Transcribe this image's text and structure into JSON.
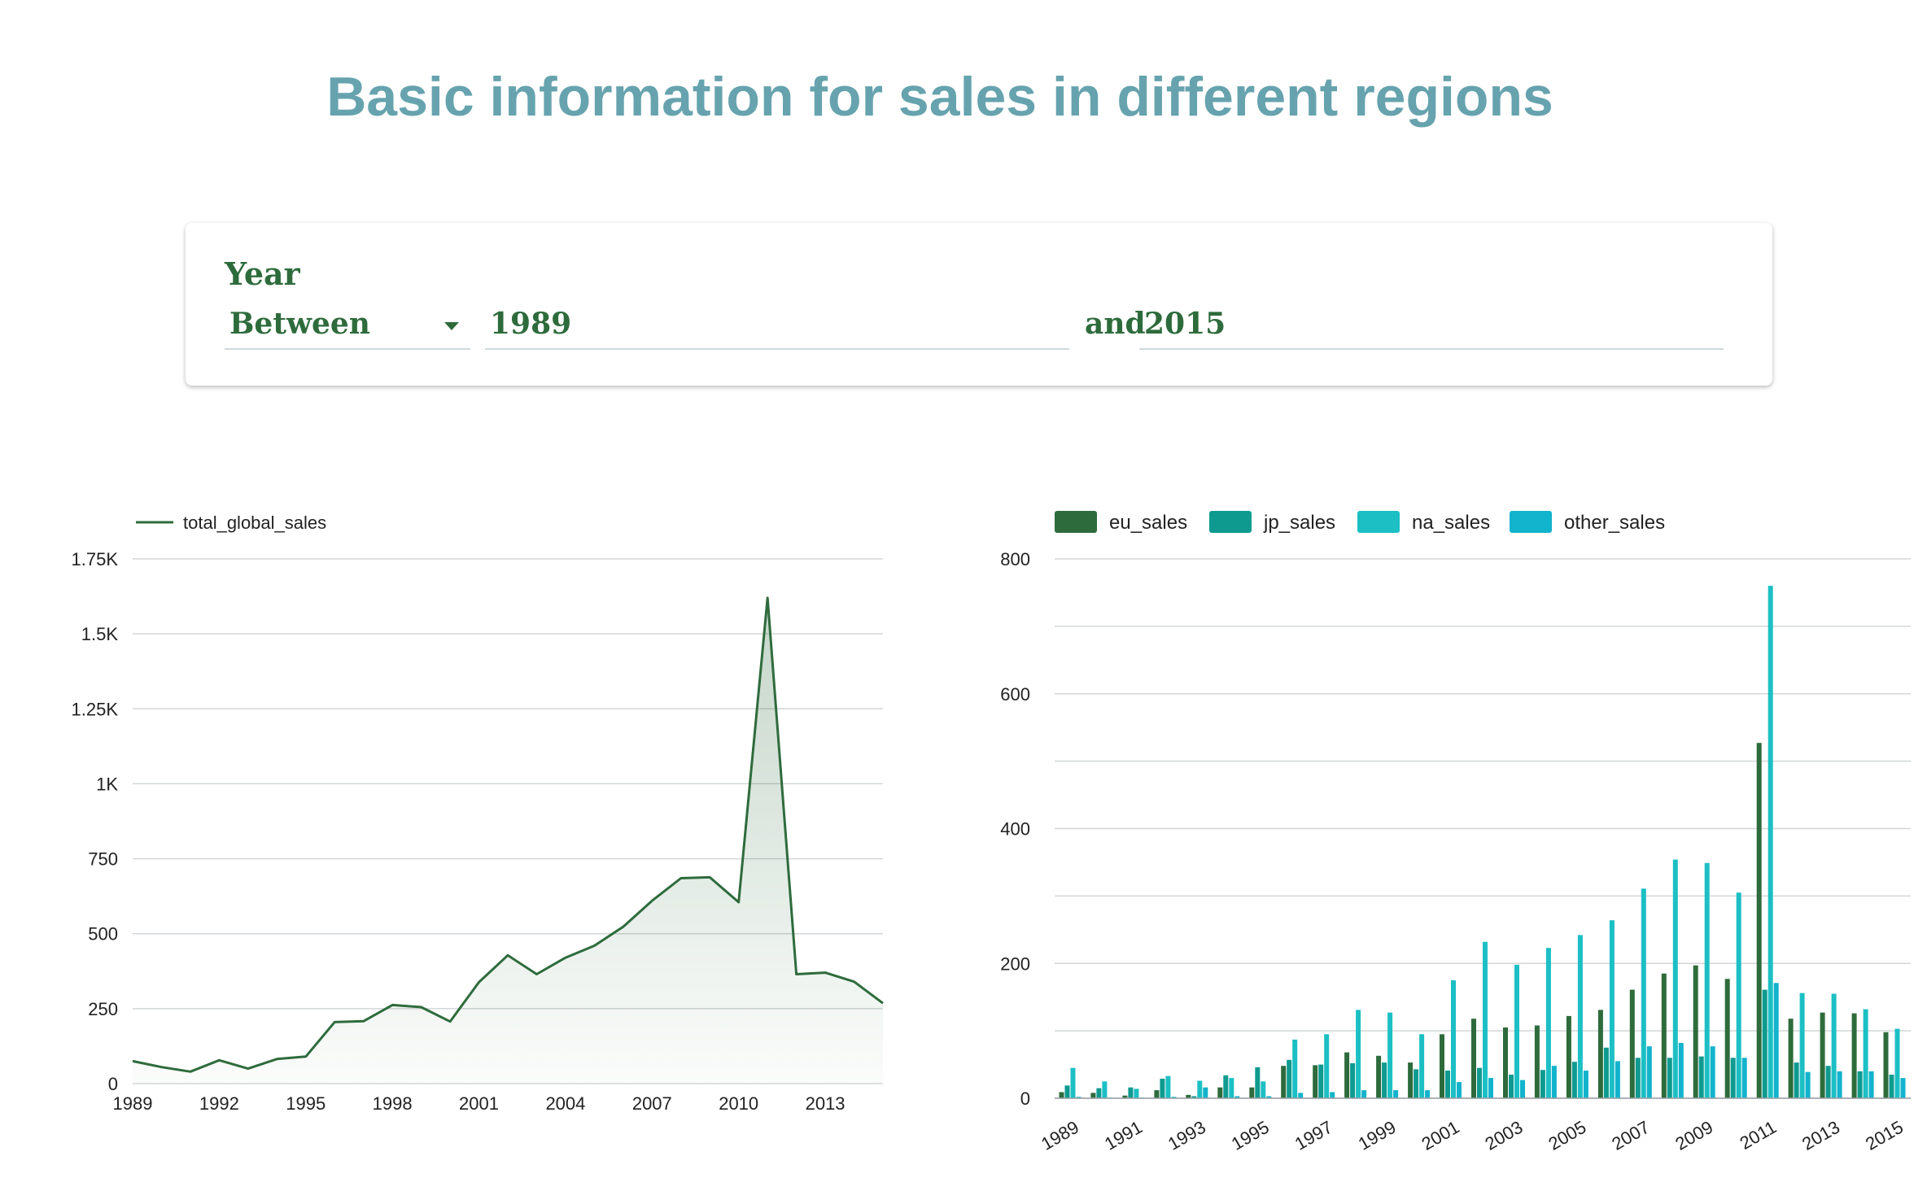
{
  "page": {
    "title": "Basic information for sales in different regions"
  },
  "filter": {
    "label": "Year",
    "operator": "Between",
    "from": "1989",
    "and_label": "and",
    "to": "2015"
  },
  "colors": {
    "title": "#66a3ae",
    "filter_text": "#2e6b3c",
    "eu_sales": "#2e6b3c",
    "jp_sales": "#0f9a90",
    "na_sales": "#1cbfc4",
    "other_sales": "#12b3cc",
    "line": "#2e6b3c"
  },
  "chart_data": [
    {
      "type": "area",
      "legend_position": "top-left",
      "grid": true,
      "x": [
        1989,
        1990,
        1991,
        1992,
        1993,
        1994,
        1995,
        1996,
        1997,
        1998,
        1999,
        2000,
        2001,
        2002,
        2003,
        2004,
        2005,
        2006,
        2007,
        2008,
        2009,
        2010,
        2011,
        2012,
        2013,
        2014,
        2015
      ],
      "series": [
        {
          "name": "total_global_sales",
          "values": [
            75,
            55,
            40,
            78,
            50,
            82,
            90,
            205,
            208,
            262,
            255,
            207,
            338,
            428,
            365,
            420,
            460,
            523,
            610,
            685,
            688,
            605,
            1620,
            365,
            370,
            340,
            268
          ]
        }
      ],
      "xlim": [
        1989,
        2015
      ],
      "xticks": [
        "1989",
        "1992",
        "1995",
        "1998",
        "2001",
        "2004",
        "2007",
        "2010",
        "2013"
      ],
      "ylim": [
        0,
        1750
      ],
      "yticks": [
        {
          "value": 0,
          "label": "0"
        },
        {
          "value": 250,
          "label": "250"
        },
        {
          "value": 500,
          "label": "500"
        },
        {
          "value": 750,
          "label": "750"
        },
        {
          "value": 1000,
          "label": "1K"
        },
        {
          "value": 1250,
          "label": "1.25K"
        },
        {
          "value": 1500,
          "label": "1.5K"
        },
        {
          "value": 1750,
          "label": "1.75K"
        }
      ]
    },
    {
      "type": "bar",
      "legend_position": "top-left",
      "grid": true,
      "categories": [
        "1989",
        "1990",
        "1991",
        "1992",
        "1993",
        "1994",
        "1995",
        "1996",
        "1997",
        "1998",
        "1999",
        "2000",
        "2001",
        "2002",
        "2003",
        "2004",
        "2005",
        "2006",
        "2007",
        "2008",
        "2009",
        "2010",
        "2011",
        "2012",
        "2013",
        "2014",
        "2015"
      ],
      "xtick_labels": [
        "1989",
        "1991",
        "1993",
        "1995",
        "1997",
        "1999",
        "2001",
        "2003",
        "2005",
        "2007",
        "2009",
        "2011",
        "2013",
        "2015"
      ],
      "series": [
        {
          "name": "eu_sales",
          "values": [
            9,
            8,
            4,
            12,
            5,
            16,
            16,
            48,
            49,
            68,
            63,
            53,
            95,
            118,
            105,
            108,
            122,
            131,
            161,
            185,
            197,
            177,
            527,
            118,
            127,
            126,
            98
          ]
        },
        {
          "name": "jp_sales",
          "values": [
            19,
            15,
            16,
            29,
            3,
            34,
            46,
            57,
            50,
            52,
            53,
            43,
            41,
            45,
            35,
            42,
            54,
            75,
            60,
            60,
            62,
            60,
            161,
            53,
            48,
            40,
            35
          ]
        },
        {
          "name": "na_sales",
          "values": [
            45,
            25,
            14,
            33,
            26,
            30,
            25,
            87,
            95,
            131,
            127,
            95,
            175,
            232,
            198,
            223,
            242,
            264,
            311,
            354,
            349,
            305,
            760,
            156,
            155,
            132,
            103
          ]
        },
        {
          "name": "other_sales",
          "values": [
            2,
            1,
            1,
            2,
            16,
            3,
            3,
            8,
            9,
            12,
            12,
            12,
            24,
            30,
            27,
            48,
            41,
            55,
            77,
            82,
            77,
            60,
            171,
            39,
            40,
            40,
            30
          ]
        }
      ],
      "ylim": [
        0,
        800
      ],
      "yticks": [
        "0",
        "200",
        "400",
        "600",
        "800"
      ]
    }
  ]
}
